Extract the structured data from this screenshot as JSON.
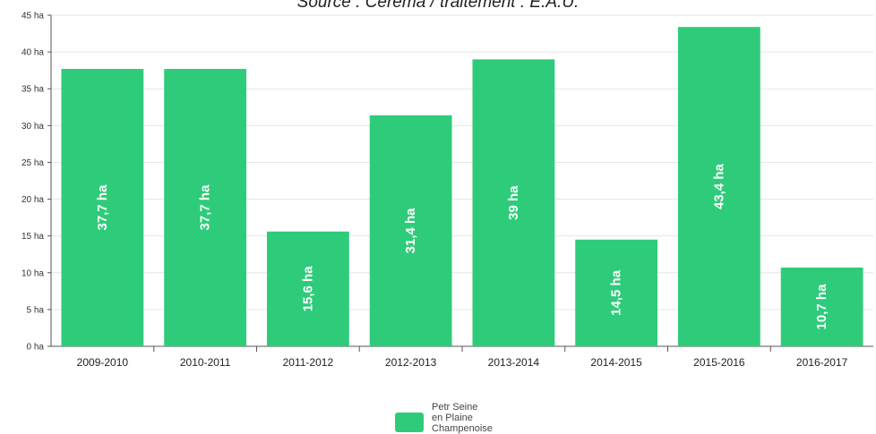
{
  "header": {
    "source_text": "Source : Cerema / traitement : E.A.U."
  },
  "colors": {
    "bar": "#2ecc7a",
    "grid": "#e6e6e6",
    "axis": "#555555"
  },
  "chart_data": {
    "type": "bar",
    "categories": [
      "2009-2010",
      "2010-2011",
      "2011-2012",
      "2012-2013",
      "2013-2014",
      "2014-2015",
      "2015-2016",
      "2016-2017"
    ],
    "series": [
      {
        "name": "Petr Seine en Plaine Champenoise",
        "values": [
          37.7,
          37.7,
          15.6,
          31.4,
          39,
          14.5,
          43.4,
          10.7
        ],
        "labels": [
          "37,7 ha",
          "37,7 ha",
          "15,6 ha",
          "31,4 ha",
          "39 ha",
          "14,5 ha",
          "43,4 ha",
          "10,7 ha"
        ]
      }
    ],
    "y_ticks": [
      0,
      5,
      10,
      15,
      20,
      25,
      30,
      35,
      40,
      45
    ],
    "y_tick_labels": [
      "0 ha",
      "5 ha",
      "10 ha",
      "15 ha",
      "20 ha",
      "25 ha",
      "30 ha",
      "35 ha",
      "40 ha",
      "45 ha"
    ],
    "ylim": [
      0,
      45
    ],
    "grid": true,
    "legend_position": "bottom-center",
    "legend_label_lines": [
      "Petr Seine",
      "en Plaine",
      "Champenoise"
    ]
  }
}
